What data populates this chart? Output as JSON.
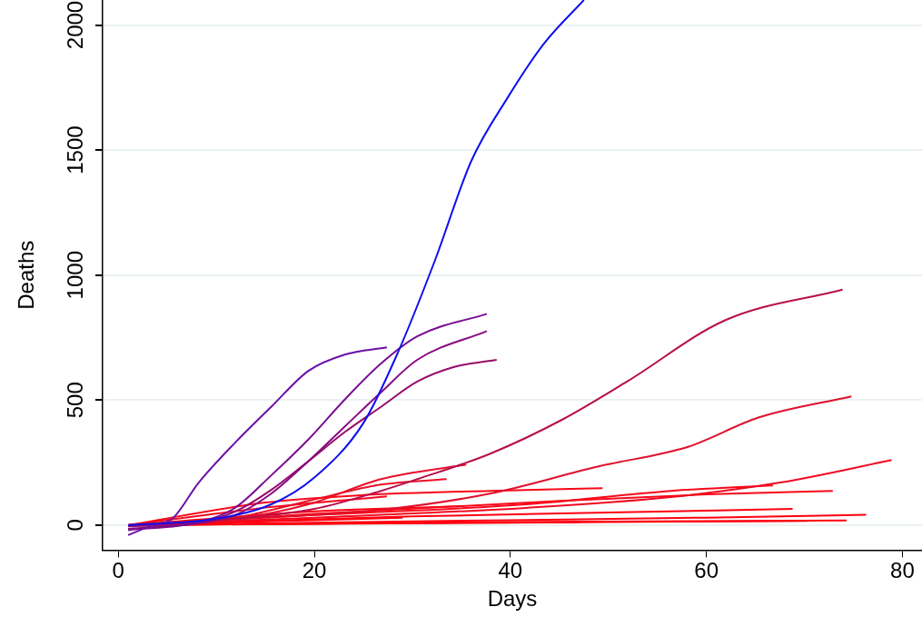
{
  "chart_data": {
    "type": "line",
    "xlabel": "Days",
    "ylabel": "Deaths",
    "xlim": [
      -1.6,
      82
    ],
    "ylim": [
      -100,
      2100
    ],
    "xticks": [
      0,
      20,
      40,
      60,
      80
    ],
    "yticks": [
      0,
      500,
      1000,
      1500,
      2000
    ],
    "grid": "y",
    "marker": "none",
    "line_style": "solid",
    "series": [
      {
        "color": "#1010f0",
        "x": [
          1,
          9.3,
          15.6,
          20,
          25,
          28.6,
          32.3,
          36,
          39.7,
          43.4,
          47.5
        ],
        "values": [
          0,
          22,
          83,
          190,
          408,
          697,
          1058,
          1455,
          1708,
          1924,
          2100
        ]
      },
      {
        "color": "#6a10a8",
        "x": [
          1,
          3.5,
          5.5,
          8.2,
          11.9,
          15.6,
          19.4,
          23.1,
          27.4
        ],
        "values": [
          -40,
          0,
          25,
          170,
          329,
          473,
          617,
          682,
          711
        ]
      },
      {
        "color": "#7a0c92",
        "x": [
          1,
          8.2,
          11.9,
          15.6,
          19.4,
          23.1,
          26.8,
          30.5,
          37.6
        ],
        "values": [
          -20,
          11,
          69,
          199,
          343,
          502,
          646,
          755,
          845
        ]
      },
      {
        "color": "#880a80",
        "x": [
          1,
          8.2,
          11.9,
          15.6,
          19.4,
          23.1,
          26.8,
          30.5,
          37.6
        ],
        "values": [
          -15,
          8,
          40,
          126,
          256,
          394,
          531,
          661,
          776
        ]
      },
      {
        "color": "#980a6a",
        "x": [
          1,
          8.2,
          11.9,
          15.6,
          19.4,
          23.1,
          26.8,
          30.5,
          34.2,
          38.6
        ],
        "values": [
          -5,
          10,
          54,
          141,
          256,
          372,
          473,
          574,
          632,
          661
        ]
      },
      {
        "color": "#b80e4a",
        "x": [
          1,
          10,
          20,
          26.8,
          30.5,
          37.9,
          45.3,
          51.9,
          61.9,
          73.9
        ],
        "values": [
          0,
          20,
          65,
          137,
          184,
          285,
          422,
          574,
          819,
          942
        ]
      },
      {
        "color": "#e0102c",
        "x": [
          1,
          15,
          26.8,
          37.9,
          49,
          58.2,
          65.3,
          74.8
        ],
        "values": [
          0,
          30,
          61,
          126,
          235,
          314,
          430,
          515
        ]
      },
      {
        "color": "#f00a20",
        "x": [
          1,
          20,
          41.6,
          56.4,
          67.5,
          78.9
        ],
        "values": [
          0,
          30,
          69,
          112,
          170,
          260
        ]
      },
      {
        "color": "#f80818",
        "x": [
          1,
          20,
          45,
          60,
          72.9
        ],
        "values": [
          0,
          45,
          97,
          123,
          137
        ]
      },
      {
        "color": "#f80818",
        "x": [
          1,
          20,
          41.6,
          56.4,
          66.8
        ],
        "values": [
          0,
          40,
          83,
          137,
          159
        ]
      },
      {
        "color": "#f80818",
        "x": [
          1,
          15,
          25,
          37.9,
          49.4
        ],
        "values": [
          0,
          90,
          120,
          137,
          148
        ]
      },
      {
        "color": "#ff0010",
        "x": [
          1,
          30,
          50,
          68.8
        ],
        "values": [
          0,
          35,
          50,
          65
        ]
      },
      {
        "color": "#ff0010",
        "x": [
          1,
          40,
          60,
          76.3
        ],
        "values": [
          0,
          20,
          30,
          41
        ]
      },
      {
        "color": "#ff0010",
        "x": [
          1,
          40,
          74.3
        ],
        "values": [
          0,
          12,
          19
        ]
      },
      {
        "color": "#ff0010",
        "x": [
          1,
          40,
          70.3
        ],
        "values": [
          0,
          10,
          17
        ]
      },
      {
        "color": "#e8102a",
        "x": [
          1,
          11.9,
          19.4,
          26.8,
          35.5
        ],
        "values": [
          0,
          25,
          83,
          184,
          242
        ]
      },
      {
        "color": "#ea1028",
        "x": [
          1,
          12,
          19.4,
          26.8,
          33.5
        ],
        "values": [
          0,
          30,
          97,
          162,
          184
        ]
      },
      {
        "color": "#f00a20",
        "x": [
          1,
          15,
          27.4
        ],
        "values": [
          0,
          70,
          115
        ]
      },
      {
        "color": "#ff0010",
        "x": [
          1,
          20,
          35.3
        ],
        "values": [
          0,
          55,
          76
        ]
      },
      {
        "color": "#ff0010",
        "x": [
          1,
          20,
          29
        ],
        "values": [
          0,
          20,
          30
        ]
      },
      {
        "color": "#ff0010",
        "x": [
          1,
          15,
          47
        ],
        "values": [
          0,
          5,
          12
        ]
      }
    ]
  }
}
